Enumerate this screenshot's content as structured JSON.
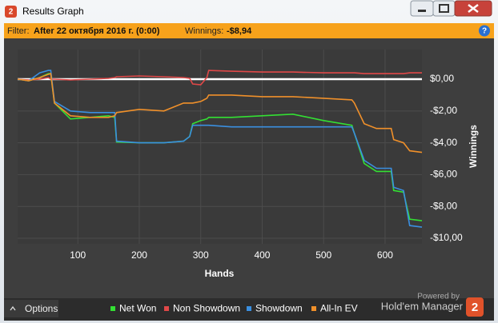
{
  "window_title": "Results Graph",
  "app_icon": "2",
  "filter": {
    "label": "Filter:",
    "text": "After 22 октября 2016 г. (0:00)",
    "winnings_label": "Winnings:",
    "winnings": "-$8,94",
    "help": "?"
  },
  "chart_data": {
    "type": "line",
    "x_label": "Hands",
    "y_label": "Winnings",
    "x": [
      2,
      20,
      38,
      52,
      56,
      62,
      88,
      120,
      150,
      160,
      163,
      200,
      240,
      272,
      282,
      287,
      300,
      310,
      313,
      350,
      400,
      450,
      500,
      546,
      550,
      566,
      586,
      610,
      614,
      630,
      640,
      660
    ],
    "series": [
      {
        "name": "Net Won",
        "color": "#33e033",
        "values": [
          0,
          -0.1,
          0.1,
          0.35,
          0.35,
          -1.5,
          -2.5,
          -2.4,
          -2.3,
          -2.4,
          -3.95,
          -4.0,
          -4.0,
          -3.9,
          -3.6,
          -2.8,
          -2.6,
          -2.5,
          -2.4,
          -2.4,
          -2.3,
          -2.2,
          -2.6,
          -2.9,
          -3.4,
          -5.3,
          -5.8,
          -5.8,
          -7.0,
          -7.1,
          -8.8,
          -8.9
        ]
      },
      {
        "name": "Non Showdown",
        "color": "#e04848",
        "values": [
          0,
          -0.05,
          0,
          0.1,
          0,
          0,
          -0.05,
          0,
          0.05,
          0.1,
          0.15,
          0.2,
          0.15,
          0.1,
          0.05,
          -0.3,
          -0.35,
          0.1,
          0.55,
          0.5,
          0.45,
          0.45,
          0.4,
          0.4,
          0.4,
          0.35,
          0.35,
          0.35,
          0.35,
          0.35,
          0.4,
          0.4
        ]
      },
      {
        "name": "Showdown",
        "color": "#3a8fe0",
        "values": [
          0,
          -0.1,
          0.4,
          0.55,
          0.55,
          -1.4,
          -2.0,
          -2.1,
          -2.1,
          -2.1,
          -3.9,
          -4.0,
          -4.0,
          -3.9,
          -3.6,
          -2.9,
          -2.9,
          -2.9,
          -2.9,
          -3.0,
          -3.0,
          -3.0,
          -3.0,
          -3.0,
          -3.4,
          -5.1,
          -5.6,
          -5.6,
          -6.8,
          -7.0,
          -9.2,
          -9.3
        ]
      },
      {
        "name": "All-In EV",
        "color": "#f0902a",
        "values": [
          0,
          -0.1,
          0.1,
          0.3,
          0.35,
          -1.5,
          -2.3,
          -2.4,
          -2.4,
          -2.3,
          -2.1,
          -1.9,
          -2.0,
          -1.5,
          -1.5,
          -1.5,
          -1.4,
          -1.2,
          -1.0,
          -1.0,
          -1.1,
          -1.1,
          -1.2,
          -1.3,
          -1.5,
          -2.8,
          -3.1,
          -3.1,
          -3.8,
          -4.0,
          -4.5,
          -4.6
        ]
      }
    ],
    "xlim": [
      2,
      660
    ],
    "xticks": [
      100,
      200,
      300,
      400,
      500,
      600
    ],
    "ylim": [
      -10.35,
      1.86
    ],
    "yticks": [
      {
        "value": 0,
        "label": "$0,00"
      },
      {
        "value": -2,
        "label": "-$2,00"
      },
      {
        "value": -4,
        "label": "-$4,00"
      },
      {
        "value": -6,
        "label": "-$6,00"
      },
      {
        "value": -8,
        "label": "-$8,00"
      },
      {
        "value": -10,
        "label": "-$10,00"
      }
    ],
    "grid": true,
    "legend": "bottom"
  },
  "footer": {
    "options": "Options",
    "powered_by": "Powered by",
    "brand": "Hold'em Manager"
  }
}
